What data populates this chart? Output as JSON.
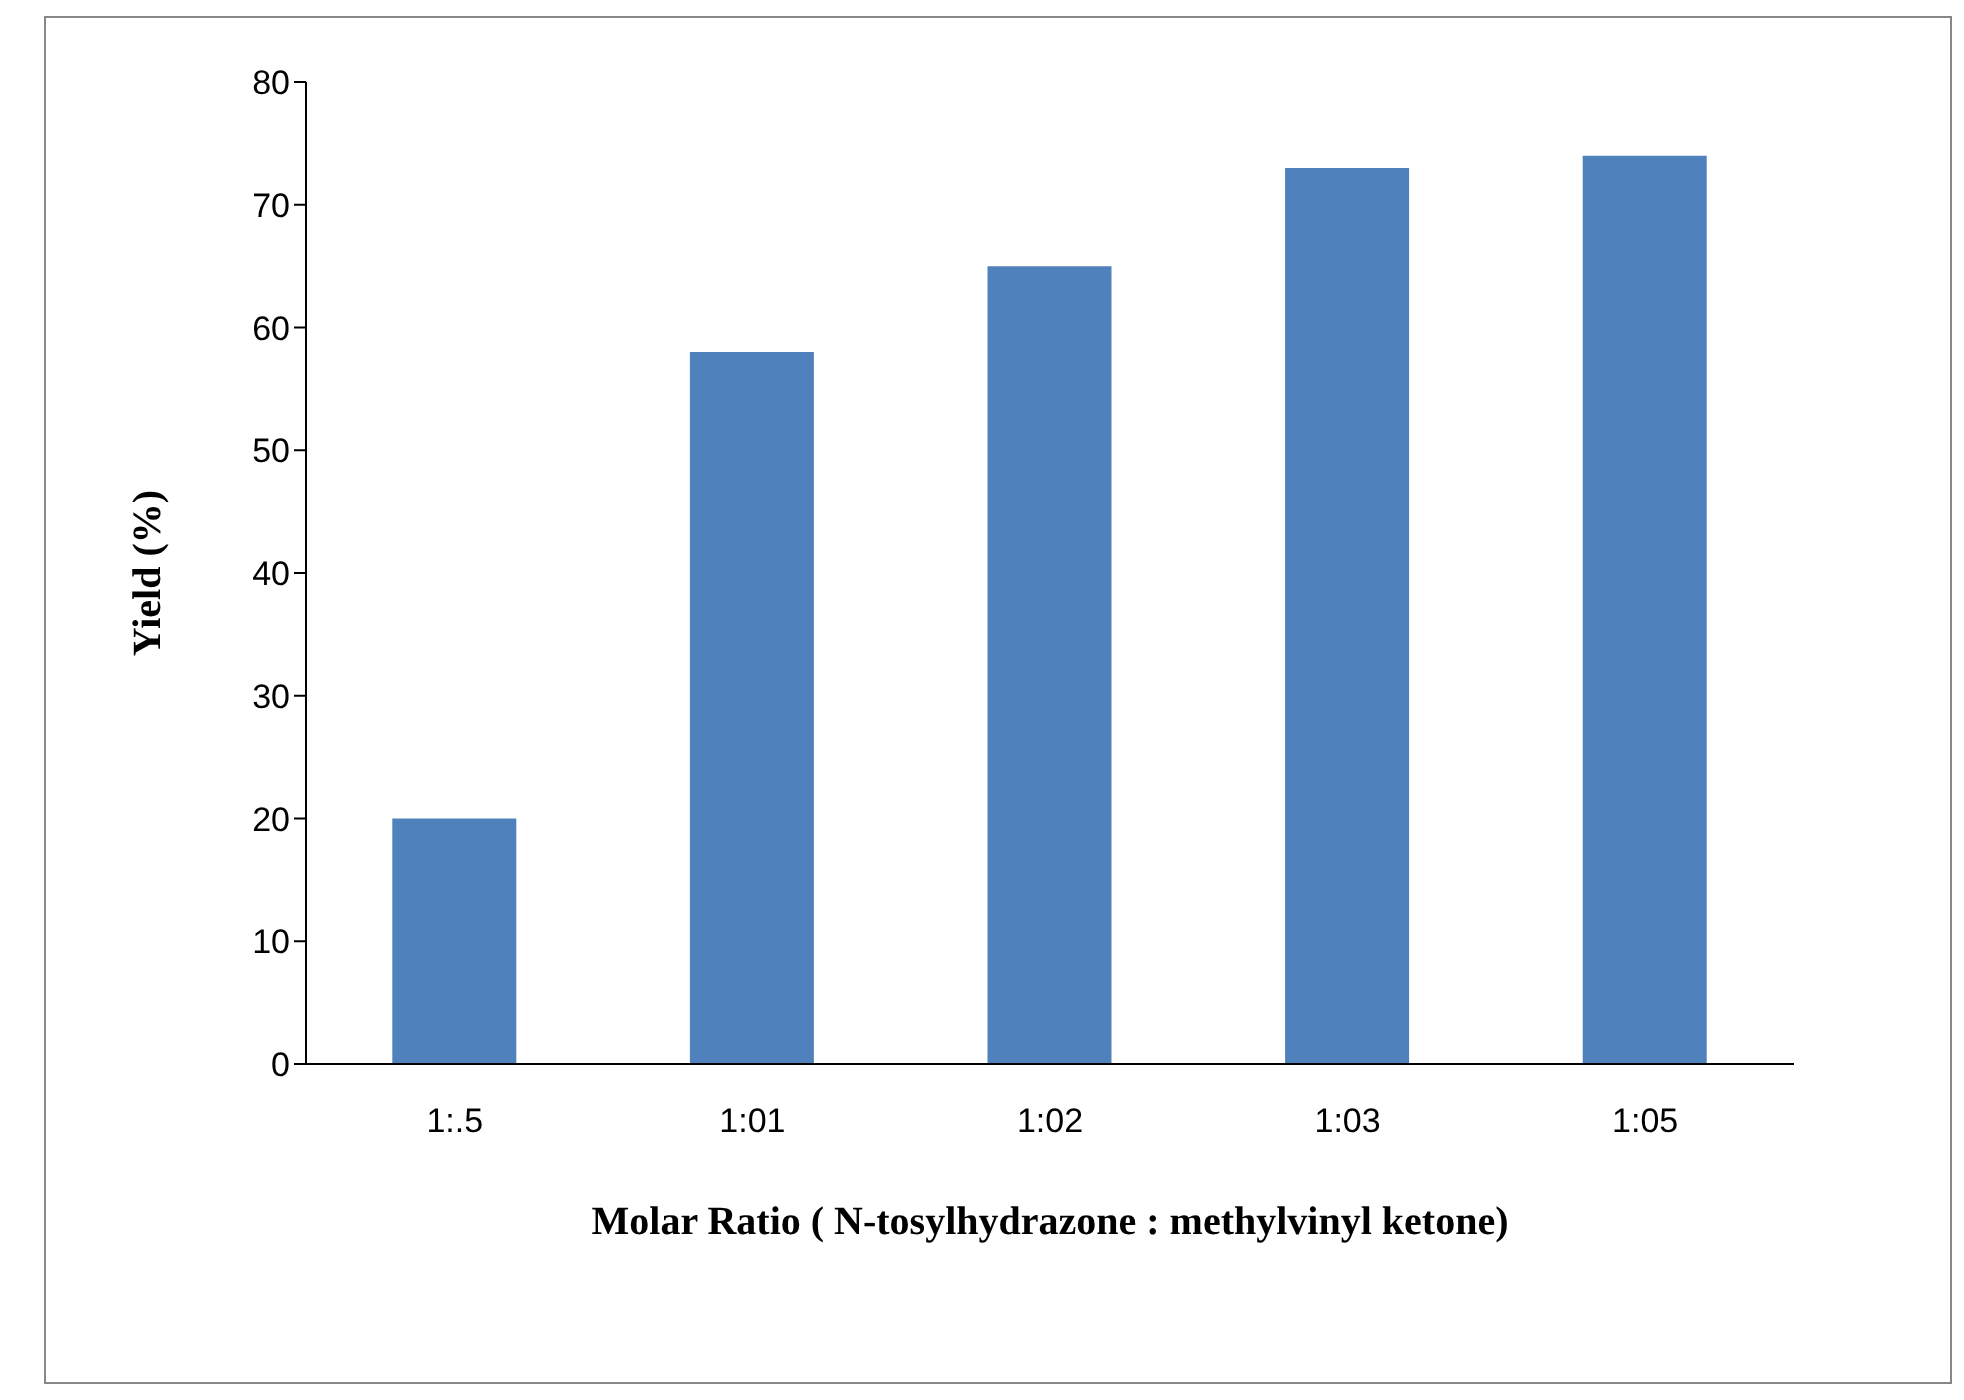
{
  "chart_data": {
    "type": "bar",
    "xlabel": "Molar Ratio ( N-tosylhydrazone : methylvinyl ketone)",
    "ylabel": "Yield (%)",
    "categories": [
      "1:.5",
      "1:01",
      "1:02",
      "1:03",
      "1:05"
    ],
    "values": [
      20,
      58,
      65,
      73,
      74
    ],
    "color": "#4f81bd",
    "ylim": [
      0,
      80
    ],
    "yticks": [
      0,
      10,
      20,
      30,
      40,
      50,
      60,
      70,
      80
    ]
  }
}
